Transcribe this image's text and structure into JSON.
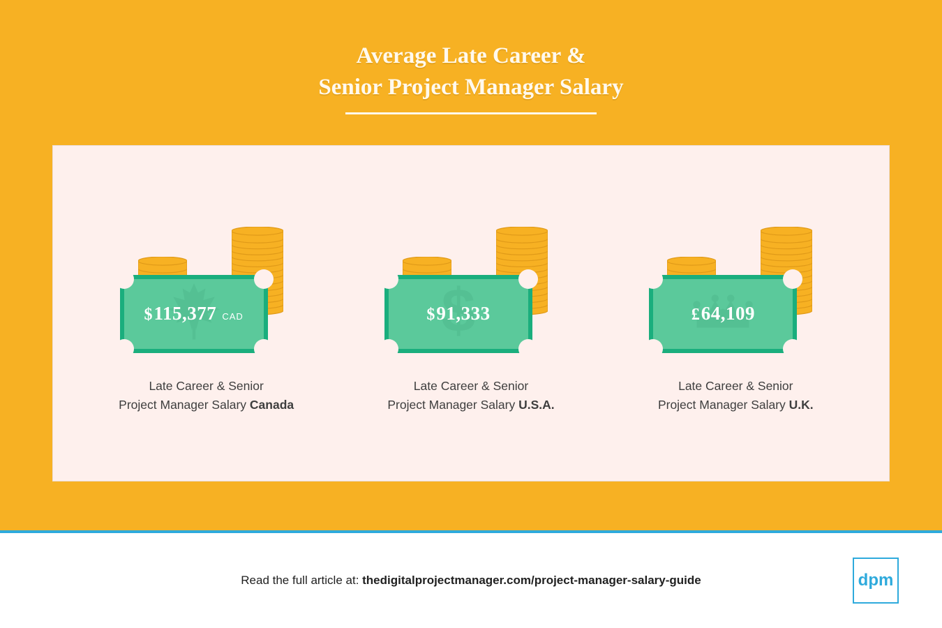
{
  "colors": {
    "hero_bg": "#f7b123",
    "panel_bg": "#fef0ed",
    "bill_fill": "#5bc99b",
    "bill_border": "#1aae7d",
    "coin_fill": "#f7b123",
    "coin_stroke": "#e09a18",
    "title_color": "#fff9ee",
    "text_color": "#3e3e3e",
    "divider_color": "#2eaadc",
    "logo_color": "#2eaadc",
    "footer_bg": "#ffffff"
  },
  "typography": {
    "title_family": "Georgia, serif",
    "title_size_pt": 25,
    "amount_size_pt": 20,
    "caption_size_pt": 13,
    "footer_size_pt": 13
  },
  "title": {
    "line1": "Average Late Career &",
    "line2": "Senior Project Manager Salary"
  },
  "cards": [
    {
      "symbol": "$",
      "amount": "115,377",
      "suffix": "CAD",
      "watermark": "maple",
      "caption_line1": "Late Career & Senior",
      "caption_line2_prefix": "Project Manager Salary ",
      "country": "Canada"
    },
    {
      "symbol": "$",
      "amount": "91,333",
      "suffix": "",
      "watermark": "dollar",
      "caption_line1": "Late Career & Senior",
      "caption_line2_prefix": "Project Manager Salary ",
      "country": "U.S.A."
    },
    {
      "symbol": "£",
      "amount": "64,109",
      "suffix": "",
      "watermark": "crown",
      "caption_line1": "Late Career & Senior",
      "caption_line2_prefix": "Project Manager Salary ",
      "country": "U.K."
    }
  ],
  "footer": {
    "prefix": "Read the full article at: ",
    "url": "thedigitalprojectmanager.com/project-manager-salary-guide"
  },
  "logo": {
    "text": "dpm"
  }
}
